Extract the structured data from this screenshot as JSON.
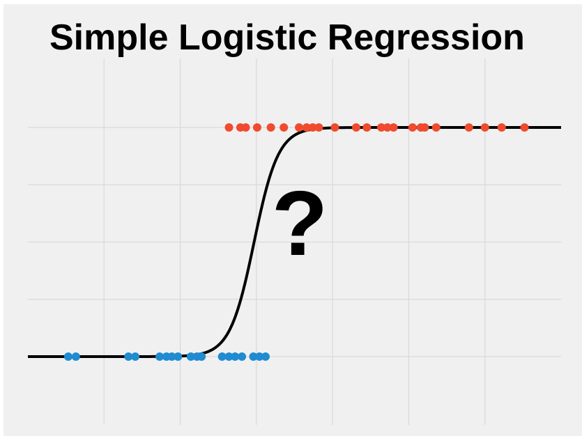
{
  "chart_data": {
    "type": "scatter",
    "title": "Simple Logistic Regression",
    "annotation": "?",
    "xlabel": "",
    "ylabel": "",
    "xlim": [
      0,
      7
    ],
    "ylim": [
      -0.2,
      1.2
    ],
    "x_gridlines": [
      1,
      2,
      3,
      4,
      5,
      6
    ],
    "y_gridlines": [
      0,
      0.25,
      0.5,
      0.75,
      1
    ],
    "grid": true,
    "legend": "none",
    "series": [
      {
        "class": 0,
        "color": "#1f8bd0",
        "y": 0,
        "x": [
          0.53,
          0.63,
          1.32,
          1.41,
          1.73,
          1.82,
          1.89,
          1.97,
          2.14,
          2.22,
          2.28,
          2.55,
          2.64,
          2.72,
          2.81,
          2.96,
          3.04,
          3.12
        ]
      },
      {
        "class": 1,
        "color": "#f04b2e",
        "y": 1,
        "x": [
          2.64,
          2.79,
          2.86,
          3.01,
          3.19,
          3.36,
          3.56,
          3.66,
          3.74,
          3.82,
          4.03,
          4.31,
          4.45,
          4.64,
          4.72,
          4.8,
          5.05,
          5.16,
          5.21,
          5.36,
          5.79,
          6.0,
          6.22,
          6.52
        ]
      },
      {
        "name": "logistic curve",
        "kind": "sigmoid",
        "color": "#000000",
        "midpoint": 2.97,
        "steepness": 6.3
      }
    ]
  }
}
